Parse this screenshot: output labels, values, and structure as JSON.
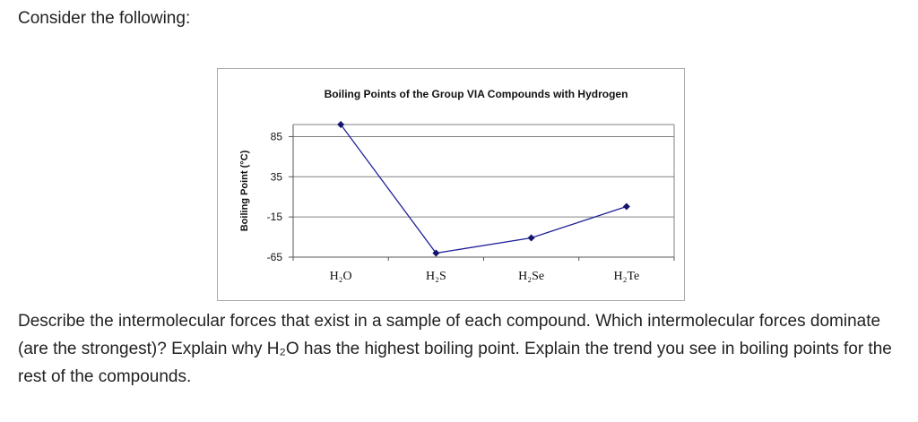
{
  "intro": "Consider the following:",
  "question": "Describe the intermolecular forces that exist in a sample of each compound.  Which intermolecular forces dominate (are the strongest)?  Explain why H₂O has the highest boiling point.  Explain the trend you see in boiling points for the rest of the compounds.",
  "chart_data": {
    "type": "line",
    "title": "Boiling Points of the Group VIA Compounds with Hydrogen",
    "xlabel": "",
    "ylabel": "Boiling Point (°C)",
    "categories": [
      "H₂O",
      "H₂S",
      "H₂Se",
      "H₂Te"
    ],
    "y_ticks": [
      "85",
      "35",
      "-15",
      "-65"
    ],
    "series": [
      {
        "values": [
          100,
          -60,
          -41,
          -2
        ]
      }
    ],
    "ylim": [
      -65,
      100
    ],
    "grid": true,
    "legend": "none",
    "colors": {
      "line": "#1f1f9a",
      "marker": "#14146e",
      "grid": "#808080"
    }
  }
}
